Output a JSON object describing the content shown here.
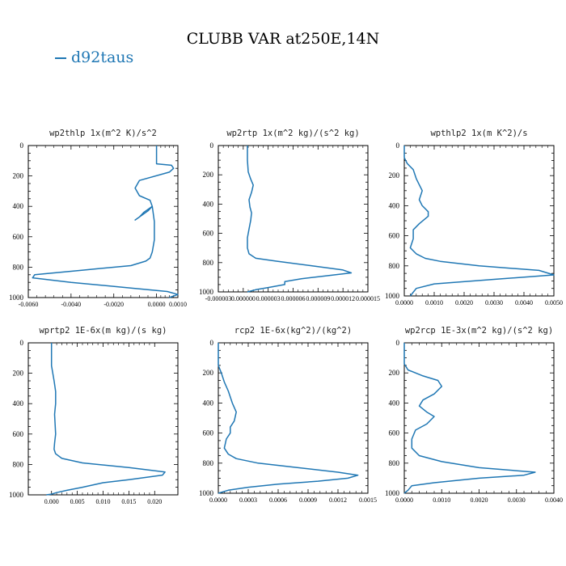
{
  "title": "CLUBB VAR at250E,14N",
  "legend": {
    "label": "d92taus",
    "color": "#1f77b4"
  },
  "chart_data": [
    {
      "type": "line",
      "title": "wp2thlp  1x(m^2 K)/s^2",
      "xlim": [
        -0.006,
        0.001
      ],
      "ylim": [
        1000,
        0
      ],
      "x_ticks": [
        -0.006,
        -0.004,
        -0.002,
        0.0,
        0.001
      ],
      "x_tick_labels": [
        "-0.0060",
        "-0.0040",
        "-0.0020",
        "0.0000",
        "0.0010"
      ],
      "y_ticks": [
        0,
        200,
        400,
        600,
        800,
        1000
      ],
      "series": [
        {
          "x": [
            0.0,
            0.0,
            0.0007,
            0.0008,
            0.0006,
            -0.0008,
            -0.001,
            -0.0008,
            -0.0003,
            -0.0002,
            -0.0006,
            -0.0008,
            -0.001,
            -0.0004,
            -0.0002,
            -0.0001,
            -0.0001,
            -0.0001,
            -0.0002,
            -0.0003,
            -0.0005,
            -0.0012,
            -0.0035,
            -0.0057,
            -0.0058,
            -0.004,
            -0.001,
            0.0005,
            0.001,
            0.0006
          ],
          "y": [
            0,
            120,
            130,
            150,
            175,
            230,
            280,
            330,
            360,
            400,
            440,
            470,
            490,
            430,
            400,
            500,
            580,
            620,
            700,
            740,
            760,
            790,
            820,
            850,
            870,
            900,
            940,
            960,
            980,
            1000
          ]
        }
      ]
    },
    {
      "type": "line",
      "title": "wp2rtp  1x(m^2 kg)/(s^2 kg)",
      "xlim": [
        -3e-06,
        1.5e-05
      ],
      "ylim": [
        1000,
        0
      ],
      "x_ticks": [
        -3e-06,
        0.0,
        3e-06,
        6e-06,
        9e-06,
        1.2e-05,
        1.5e-05
      ],
      "x_tick_labels": [
        "-0.000003",
        "0.000000",
        "0.000003",
        "0.000006",
        "0.000009",
        "0.000012",
        "0.000015"
      ],
      "y_ticks": [
        0,
        200,
        400,
        600,
        800,
        1000
      ],
      "series": [
        {
          "x": [
            5e-07,
            5e-07,
            6e-07,
            9e-07,
            1.2e-06,
            1e-06,
            7e-07,
            8e-07,
            1e-06,
            9e-07,
            7e-07,
            5e-07,
            5e-07,
            7e-07,
            1.5e-06,
            4e-06,
            8e-06,
            1.2e-05,
            1.3e-05,
            1e-05,
            7e-06,
            5e-06,
            5e-06,
            3e-06,
            1.5e-06,
            5e-07
          ],
          "y": [
            0,
            100,
            180,
            230,
            270,
            320,
            370,
            420,
            460,
            510,
            570,
            630,
            700,
            740,
            770,
            790,
            820,
            850,
            870,
            890,
            910,
            930,
            950,
            970,
            985,
            1000
          ]
        }
      ]
    },
    {
      "type": "line",
      "title": "wpthlp2  1x(m K^2)/s",
      "xlim": [
        0.0,
        0.005
      ],
      "ylim": [
        1000,
        0
      ],
      "x_ticks": [
        0.0,
        0.001,
        0.002,
        0.003,
        0.004,
        0.005
      ],
      "x_tick_labels": [
        "0.0000",
        "0.0010",
        "0.0020",
        "0.0030",
        "0.0040",
        "0.0050"
      ],
      "y_ticks": [
        0,
        200,
        400,
        600,
        800,
        1000
      ],
      "series": [
        {
          "x": [
            0.0,
            0.0,
            0.0001,
            0.0003,
            0.0004,
            0.0005,
            0.0006,
            0.0005,
            0.0006,
            0.0008,
            0.0008,
            0.0005,
            0.0003,
            0.0003,
            0.0002,
            0.0004,
            0.0007,
            0.0012,
            0.0025,
            0.0045,
            0.005,
            0.003,
            0.001,
            0.0004,
            0.0003,
            0.0002
          ],
          "y": [
            0,
            80,
            120,
            160,
            220,
            260,
            300,
            360,
            400,
            440,
            470,
            520,
            560,
            620,
            680,
            720,
            750,
            770,
            800,
            830,
            860,
            890,
            920,
            950,
            975,
            1000
          ]
        }
      ]
    },
    {
      "type": "line",
      "title": "wprtp2  1E-6x(m kg)/(s kg)",
      "xlim": [
        -0.0045,
        0.0245
      ],
      "ylim": [
        1000,
        0
      ],
      "x_ticks": [
        0.0,
        0.005,
        0.01,
        0.015,
        0.02
      ],
      "x_tick_labels": [
        "0.000",
        "0.005",
        "0.010",
        "0.015",
        "0.020"
      ],
      "y_ticks": [
        0,
        200,
        400,
        600,
        800,
        1000
      ],
      "series": [
        {
          "x": [
            0.0,
            0.0,
            0.0005,
            0.0008,
            0.0008,
            0.0006,
            0.0007,
            0.0008,
            0.0006,
            0.0005,
            0.0008,
            0.002,
            0.006,
            0.015,
            0.022,
            0.0215,
            0.015,
            0.01,
            0.006,
            0.003,
            0.001,
            0.0,
            -0.001
          ],
          "y": [
            0,
            150,
            250,
            320,
            400,
            470,
            540,
            600,
            660,
            700,
            730,
            760,
            790,
            820,
            850,
            870,
            900,
            920,
            950,
            970,
            985,
            995,
            1000
          ]
        }
      ]
    },
    {
      "type": "line",
      "title": "rcp2  1E-6x(kg^2)/(kg^2)",
      "xlim": [
        0.0,
        0.0015
      ],
      "ylim": [
        1000,
        0
      ],
      "x_ticks": [
        0.0,
        0.0003,
        0.0006,
        0.0009,
        0.0012,
        0.0015
      ],
      "x_tick_labels": [
        "0.0000",
        "0.0003",
        "0.0006",
        "0.0009",
        "0.0012",
        "0.0015"
      ],
      "y_ticks": [
        0,
        200,
        400,
        600,
        800,
        1000
      ],
      "series": [
        {
          "x": [
            0.0,
            0.0,
            3e-05,
            6e-05,
            0.0001,
            0.00014,
            0.00018,
            0.00016,
            0.00012,
            0.00012,
            8e-05,
            6e-05,
            0.0001,
            0.00018,
            0.0004,
            0.0008,
            0.0012,
            0.0014,
            0.0013,
            0.001,
            0.0006,
            0.0003,
            0.0001,
            0.0
          ],
          "y": [
            0,
            150,
            200,
            260,
            320,
            400,
            460,
            520,
            560,
            600,
            640,
            700,
            740,
            770,
            800,
            830,
            860,
            880,
            900,
            920,
            940,
            960,
            980,
            1000
          ]
        }
      ]
    },
    {
      "type": "line",
      "title": "wp2rcp  1E-3x(m^2 kg)/(s^2 kg)",
      "xlim": [
        0.0,
        0.004
      ],
      "ylim": [
        1000,
        0
      ],
      "x_ticks": [
        0.0,
        0.001,
        0.002,
        0.003,
        0.004
      ],
      "x_tick_labels": [
        "0.0000",
        "0.0010",
        "0.0020",
        "0.0030",
        "0.0040"
      ],
      "y_ticks": [
        0,
        200,
        400,
        600,
        800,
        1000
      ],
      "series": [
        {
          "x": [
            0.0,
            0.0,
            0.0001,
            0.0005,
            0.0009,
            0.001,
            0.0008,
            0.0005,
            0.0004,
            0.0006,
            0.0008,
            0.0006,
            0.0003,
            0.0002,
            0.0002,
            0.0004,
            0.001,
            0.002,
            0.0035,
            0.0032,
            0.002,
            0.0008,
            0.0002,
            0.0001,
            0.0
          ],
          "y": [
            0,
            140,
            180,
            220,
            250,
            290,
            340,
            380,
            420,
            460,
            490,
            540,
            580,
            640,
            700,
            750,
            790,
            830,
            860,
            880,
            900,
            930,
            950,
            980,
            1000
          ]
        }
      ]
    }
  ]
}
